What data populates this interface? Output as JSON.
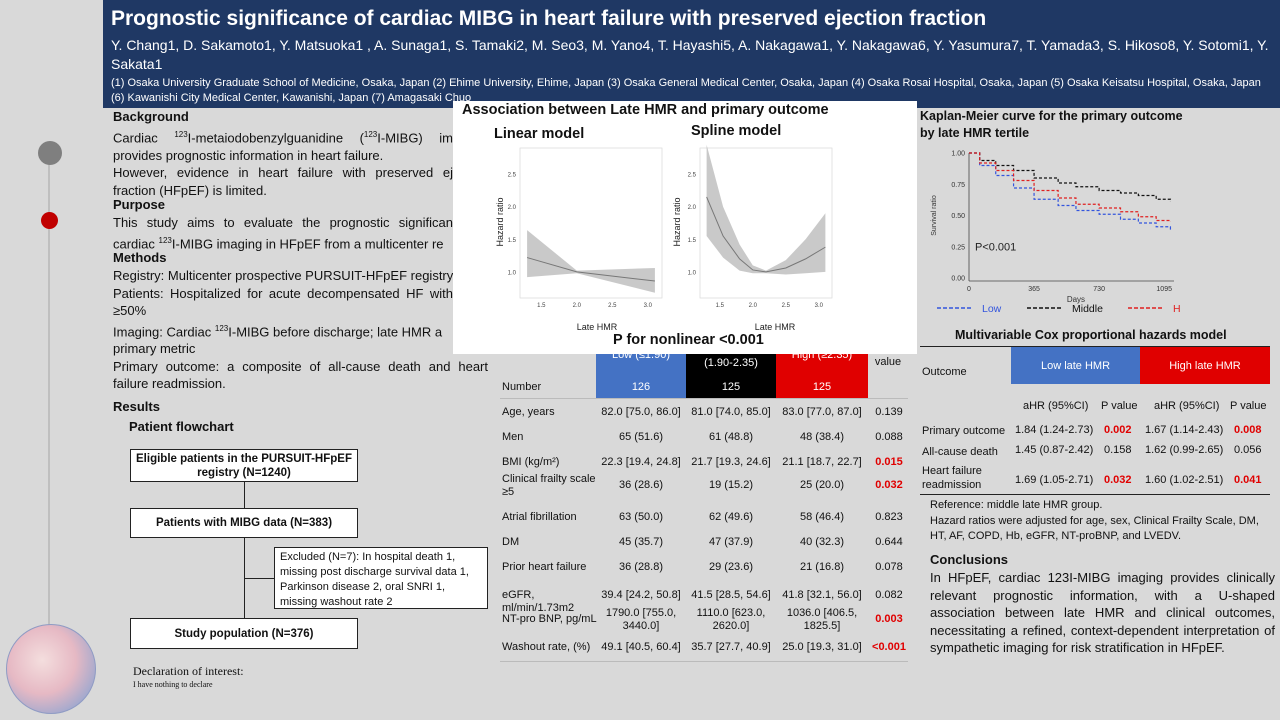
{
  "header": {
    "title": "Prognostic significance of cardiac MIBG in heart failure with preserved ejection fraction",
    "authors": "Y. Chang1, D. Sakamoto1, Y. Matsuoka1 , A. Sunaga1, S. Tamaki2, M. Seo3, M. Yano4, T. Hayashi5, A. Nakagawa1, Y. Nakagawa6, Y. Yasumura7, T. Yamada3, S. Hikoso8, Y. Sotomi1, Y. Sakata1",
    "affiliations": "(1) Osaka University Graduate School of Medicine, Osaka, Japan (2) Ehime University, Ehime, Japan (3) Osaka General Medical Center, Osaka, Japan (4) Osaka Rosai Hospital, Osaka, Japan (5) Osaka Keisatsu Hospital, Osaka, Japan (6) Kawanishi City Medical Center, Kawanishi, Japan (7) Amagasaki Chuo"
  },
  "background": {
    "heading": "Background",
    "p1a": "Cardiac ",
    "p1b": "I-metaiodobenzylguanidine (",
    "p1c": "I-MIBG) im",
    "p1d": "provides prognostic information in heart failure.",
    "p2a": "However, evidence in heart failure with preserved ej",
    "p2b": "fraction (HFpEF) is limited.",
    "sup123": "123"
  },
  "purpose": {
    "heading": "Purpose",
    "l1": "This study aims to evaluate the prognostic significan",
    "l2a": "cardiac ",
    "l2b": "I-MIBG imaging in HFpEF from a multicenter re"
  },
  "methods": {
    "heading": "Methods",
    "registry": "Registry: Multicenter prospective PURSUIT-HFpEF registry",
    "patients1": "Patients: Hospitalized for acute decompensated HF with",
    "patients2": "≥50%",
    "imaging1a": "Imaging: Cardiac ",
    "imaging1b": "I-MIBG before discharge; late HMR a",
    "imaging2": "primary metric",
    "outcome1": "Primary outcome: a composite of all-cause death and heart",
    "outcome2": "failure readmission."
  },
  "results": {
    "heading": "Results",
    "flow_title": "Patient flowchart",
    "box1": "Eligible patients in the PURSUIT-HFpEF registry (N=1240)",
    "box2": "Patients with MIBG data (N=383)",
    "excluded": [
      "Excluded (N=7): In hospital death 1,",
      "missing post discharge survival data 1,",
      "Parkinson disease 2, oral SNRI 1,",
      "missing washout rate 2"
    ],
    "box3": "Study population (N=376)"
  },
  "declaration": {
    "title": "Declaration of interest:",
    "text": "I have nothing to declare"
  },
  "hr_panel": {
    "title": "Association between Late HMR and primary outcome",
    "linear_title": "Linear model",
    "spline_title": "Spline model",
    "ylabel": "Hazard ratio",
    "xlabel": "Late HMR",
    "pnonlinear": "P for nonlinear <0.001"
  },
  "chart_data": [
    {
      "type": "line",
      "title": "Linear model",
      "xlabel": "Late HMR",
      "ylabel": "Hazard ratio",
      "xticks": [
        "1.5",
        "2.0",
        "2.5",
        "3.0"
      ],
      "yticks": [
        "1.0",
        "1.5",
        "2.0",
        "2.5"
      ],
      "xlim": [
        1.2,
        3.2
      ],
      "ylim": [
        0.6,
        2.9
      ],
      "x": [
        1.3,
        2.0,
        3.1
      ],
      "series": [
        {
          "values": [
            1.22,
            1.0,
            0.86
          ]
        }
      ],
      "ci_lower": [
        0.92,
        0.98,
        0.68
      ],
      "ci_upper": [
        1.64,
        1.02,
        1.06
      ]
    },
    {
      "type": "line",
      "title": "Spline model",
      "xlabel": "Late HMR",
      "ylabel": "Hazard ratio",
      "xticks": [
        "1.5",
        "2.0",
        "2.5",
        "3.0"
      ],
      "yticks": [
        "1.0",
        "1.5",
        "2.0",
        "2.5"
      ],
      "xlim": [
        1.2,
        3.2
      ],
      "ylim": [
        0.6,
        2.9
      ],
      "x": [
        1.3,
        1.55,
        1.8,
        2.0,
        2.2,
        2.5,
        2.8,
        3.1
      ],
      "series": [
        {
          "values": [
            2.15,
            1.55,
            1.2,
            1.03,
            1.0,
            1.06,
            1.2,
            1.38
          ]
        }
      ],
      "ci_lower": [
        1.55,
        1.22,
        1.02,
        0.98,
        0.98,
        0.96,
        0.98,
        1.0
      ],
      "ci_upper": [
        2.95,
        2.0,
        1.42,
        1.1,
        1.02,
        1.18,
        1.5,
        1.9
      ]
    },
    {
      "type": "line",
      "title": "Kaplan-Meier curve for the primary outcome by late HMR tertile",
      "xlabel": "Days",
      "ylabel": "Survival ratio",
      "xticks": [
        "0",
        "365",
        "730",
        "1095"
      ],
      "yticks": [
        "0.00",
        "0.25",
        "0.50",
        "0.75",
        "1.00"
      ],
      "xlim": [
        0,
        1150
      ],
      "ylim": [
        0,
        1.0
      ],
      "annotation": "P<0.001",
      "legend": [
        "Low",
        "Middle",
        "High"
      ],
      "x": [
        0,
        60,
        150,
        250,
        365,
        500,
        600,
        730,
        850,
        950,
        1050,
        1130
      ],
      "series": [
        {
          "name": "Low",
          "color": "#3355dd",
          "values": [
            1.0,
            0.9,
            0.82,
            0.72,
            0.63,
            0.58,
            0.54,
            0.51,
            0.47,
            0.44,
            0.41,
            0.38
          ]
        },
        {
          "name": "Middle",
          "color": "#111111",
          "values": [
            1.0,
            0.94,
            0.9,
            0.86,
            0.8,
            0.76,
            0.73,
            0.7,
            0.68,
            0.66,
            0.63,
            0.61
          ]
        },
        {
          "name": "High",
          "color": "#e02020",
          "values": [
            1.0,
            0.92,
            0.86,
            0.78,
            0.7,
            0.64,
            0.59,
            0.56,
            0.53,
            0.49,
            0.46,
            0.45
          ]
        }
      ]
    }
  ],
  "km": {
    "title1": "Kaplan-Meier curve for the primary outcome",
    "title2": "by late HMR tertile",
    "ylabel": "Survival ratio",
    "xlabel": "Days",
    "pval": "P<0.001",
    "legend": [
      "Low",
      "Middle",
      "High"
    ]
  },
  "baseline": {
    "group_partial": [
      "Low (≤1.90)",
      "(1.90-2.35)",
      "High (≥2.35)"
    ],
    "pvalue_label": "value",
    "number_label": "Number",
    "numbers": [
      "126",
      "125",
      "125"
    ],
    "rows": [
      {
        "label": "Age, years",
        "low": "82.0 [75.0, 86.0]",
        "mid": "81.0 [74.0, 85.0]",
        "high": "83.0 [77.0, 87.0]",
        "p": "0.139",
        "sig": false
      },
      {
        "label": "Men",
        "low": "65 (51.6)",
        "mid": "61 (48.8)",
        "high": "48 (38.4)",
        "p": "0.088",
        "sig": false
      },
      {
        "label": "BMI (kg/m²)",
        "low": "22.3 [19.4, 24.8]",
        "mid": "21.7 [19.3, 24.6]",
        "high": "21.1 [18.7, 22.7]",
        "p": "0.015",
        "sig": true
      },
      {
        "label": "Clinical frailty scale ≥5",
        "low": "36 (28.6)",
        "mid": "19 (15.2)",
        "high": "25 (20.0)",
        "p": "0.032",
        "sig": true
      },
      {
        "label": "Atrial fibrillation",
        "low": "63 (50.0)",
        "mid": "62 (49.6)",
        "high": "58 (46.4)",
        "p": "0.823",
        "sig": false
      },
      {
        "label": "DM",
        "low": "45 (35.7)",
        "mid": "47 (37.9)",
        "high": "40 (32.3)",
        "p": "0.644",
        "sig": false
      },
      {
        "label": "Prior heart failure",
        "low": "36 (28.8)",
        "mid": "29 (23.6)",
        "high": "21 (16.8)",
        "p": "0.078",
        "sig": false
      },
      {
        "label": "eGFR, ml/min/1.73m2",
        "low": "39.4 [24.2, 50.8]",
        "mid": "41.5 [28.5, 54.6]",
        "high": "41.8 [32.1, 56.0]",
        "p": "0.082",
        "sig": false
      },
      {
        "label": "NT-pro BNP, pg/mL",
        "low": "1790.0 [755.0, 3440.0]",
        "mid": "1110.0 [623.0, 2620.0]",
        "high": "1036.0 [406.5, 1825.5]",
        "p": "0.003",
        "sig": true
      },
      {
        "label": "Washout rate, (%)",
        "low": "49.1 [40.5, 60.4]",
        "mid": "35.7 [27.7, 40.9]",
        "high": "25.0 [19.3, 31.0]",
        "p": "<0.001",
        "sig": true
      }
    ]
  },
  "cox": {
    "title": "Multivariable Cox proportional hazards model",
    "outcome_label": "Outcome",
    "low_label": "Low late HMR",
    "high_label": "High late HMR",
    "sub": [
      "aHR (95%CI)",
      "P value",
      "aHR (95%CI)",
      "P value"
    ],
    "rows": [
      {
        "label": "Primary outcome",
        "l_hr": "1.84 (1.24-2.73)",
        "l_p": "0.002",
        "l_sig": true,
        "h_hr": "1.67 (1.14-2.43)",
        "h_p": "0.008",
        "h_sig": true
      },
      {
        "label": "All-cause death",
        "l_hr": "1.45 (0.87-2.42)",
        "l_p": "0.158",
        "l_sig": false,
        "h_hr": "1.62 (0.99-2.65)",
        "h_p": "0.056",
        "h_sig": false
      },
      {
        "label": "Heart failure readmission",
        "l_hr": "1.69 (1.05-2.71)",
        "l_p": "0.032",
        "l_sig": true,
        "h_hr": "1.60 (1.02-2.51)",
        "h_p": "0.041",
        "h_sig": true
      }
    ],
    "reference": "Reference: middle late HMR group.",
    "adjust": "Hazard ratios were adjusted for age, sex, Clinical Frailty Scale, DM, HT, AF, COPD, Hb, eGFR, NT-proBNP, and LVEDV."
  },
  "conclusions": {
    "heading": "Conclusions",
    "text": "In HFpEF, cardiac 123I-MIBG imaging provides clinically relevant prognostic information, with a U-shaped association between late HMR and clinical outcomes, necessitating a refined, context-dependent interpretation of sympathetic imaging for risk stratification in HFpEF."
  },
  "colors": {
    "header": "#1f3864",
    "low": "#4472c4",
    "mid": "#000000",
    "high": "#e00000",
    "sig": "#e00000"
  }
}
